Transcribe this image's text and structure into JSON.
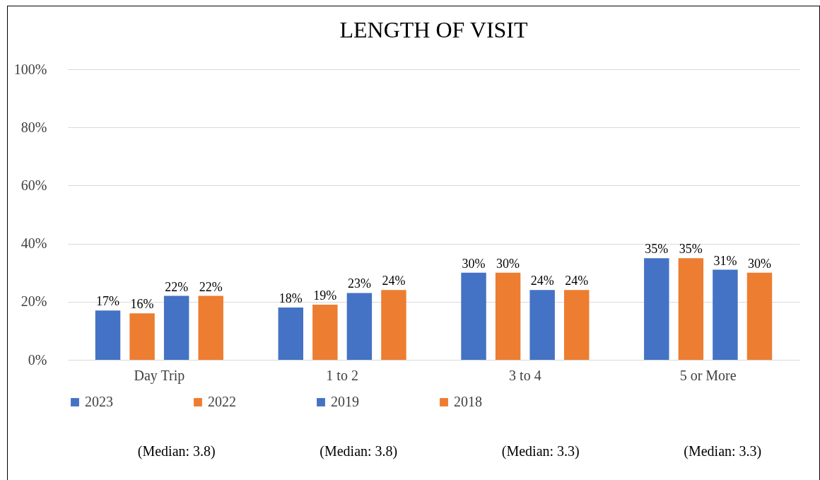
{
  "chart_data": {
    "type": "bar",
    "title": "LENGTH OF VISIT",
    "categories": [
      "Day Trip",
      "1 to 2",
      "3 to 4",
      "5 or More"
    ],
    "series": [
      {
        "name": "2023",
        "color": "#4472c4",
        "values": [
          17,
          18,
          30,
          35
        ],
        "value_labels": [
          "17%",
          "18%",
          "30%",
          "35%"
        ]
      },
      {
        "name": "2022",
        "color": "#ed7d31",
        "values": [
          16,
          19,
          30,
          35
        ],
        "value_labels": [
          "16%",
          "19%",
          "30%",
          "35%"
        ]
      },
      {
        "name": "2019",
        "color": "#4472c4",
        "values": [
          22,
          23,
          24,
          31
        ],
        "value_labels": [
          "22%",
          "23%",
          "24%",
          "31%"
        ]
      },
      {
        "name": "2018",
        "color": "#ed7d31",
        "values": [
          22,
          24,
          24,
          30
        ],
        "value_labels": [
          "22%",
          "24%",
          "24%",
          "30%"
        ]
      }
    ],
    "ylim": [
      0,
      100
    ],
    "yticks": [
      {
        "value": 0,
        "label": "0%"
      },
      {
        "value": 20,
        "label": "20%"
      },
      {
        "value": 40,
        "label": "40%"
      },
      {
        "value": 60,
        "label": "60%"
      },
      {
        "value": 80,
        "label": "80%"
      },
      {
        "value": 100,
        "label": "100%"
      }
    ],
    "grid": "y",
    "legend": "bottom",
    "annotations": [
      "(Median: 3.8)",
      "(Median: 3.8)",
      "(Median: 3.3)",
      "(Median: 3.3)"
    ]
  }
}
